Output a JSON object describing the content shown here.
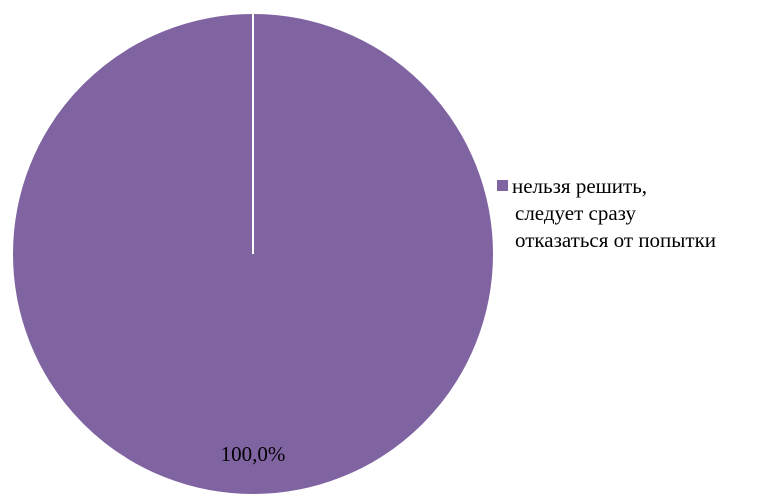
{
  "chart_data": {
    "type": "pie",
    "title": "",
    "slices": [
      {
        "label": "нельзя решить, следует сразу отказаться от попытки",
        "legend_lines": [
          "нельзя решить,",
          "следует сразу",
          "отказаться от попытки"
        ],
        "value": 100.0,
        "data_label": "100,0%",
        "color": "#8064a2"
      }
    ],
    "legend_position": "right"
  }
}
